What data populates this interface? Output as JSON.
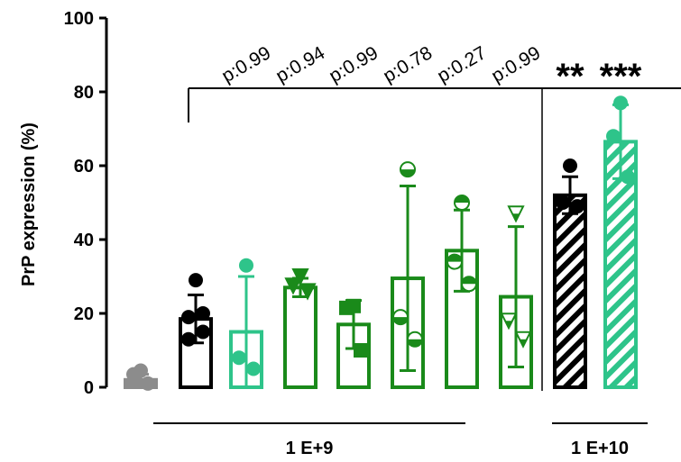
{
  "chart_data": {
    "type": "bar",
    "ylabel": "PrP expression (%)",
    "ylim": [
      0,
      100
    ],
    "yticks": [
      "0",
      "20",
      "40",
      "60",
      "80",
      "100"
    ],
    "groups": [
      {
        "label": "1 E+9",
        "bars": [
          1,
          2,
          3,
          4,
          5,
          6,
          7,
          8
        ]
      },
      {
        "label": "1 E+10",
        "bars": [
          9,
          10
        ]
      }
    ],
    "bars": [
      {
        "mean": 2,
        "sd": 1.5,
        "points": [
          4.5,
          3.5,
          1
        ],
        "color": "#8c8c8c",
        "fill": "solid",
        "marker": "circle"
      },
      {
        "mean": 18.5,
        "sd": 6.5,
        "points": [
          29,
          20,
          19,
          15,
          13
        ],
        "color": "#000000",
        "fill": "none",
        "marker": "circle"
      },
      {
        "mean": 15,
        "sd": 15,
        "points": [
          33,
          8,
          5
        ],
        "color": "#2ec48a",
        "fill": "none",
        "marker": "circle"
      },
      {
        "mean": 27,
        "sd": 2.5,
        "points": [
          30,
          27.5,
          26
        ],
        "color": "#1a8a1a",
        "fill": "none",
        "marker": "triangle-down"
      },
      {
        "mean": 17,
        "sd": 6.5,
        "points": [
          22,
          21.5,
          10
        ],
        "color": "#1a8a1a",
        "fill": "none",
        "marker": "square"
      },
      {
        "mean": 29.5,
        "sd": 25,
        "points": [
          59,
          19,
          13
        ],
        "color": "#1a8a1a",
        "fill": "none",
        "marker": "circle-half-bottom"
      },
      {
        "mean": 37,
        "sd": 11,
        "points": [
          50,
          34,
          28
        ],
        "color": "#1a8a1a",
        "fill": "none",
        "marker": "circle-half-top"
      },
      {
        "mean": 24.5,
        "sd": 19,
        "points": [
          47,
          18,
          13
        ],
        "color": "#1a8a1a",
        "fill": "none",
        "marker": "triangle-down-half"
      },
      {
        "mean": 52,
        "sd": 5,
        "points": [
          60,
          50,
          49
        ],
        "color": "#000000",
        "fill": "hatch",
        "marker": "circle"
      },
      {
        "mean": 66.5,
        "sd": 10,
        "points": [
          77,
          68,
          57
        ],
        "color": "#2ec48a",
        "fill": "hatch",
        "marker": "circle"
      }
    ],
    "annotations": [
      {
        "text": "p:0.99",
        "bar": 3
      },
      {
        "text": "p:0.94",
        "bar": 4
      },
      {
        "text": "p:0.99",
        "bar": 5
      },
      {
        "text": "p:0.78",
        "bar": 6
      },
      {
        "text": "p:0.27",
        "bar": 7
      },
      {
        "text": "p:0.99",
        "bar": 8
      },
      {
        "text": "**",
        "bar": 9
      },
      {
        "text": "***",
        "bar": 10
      }
    ]
  }
}
